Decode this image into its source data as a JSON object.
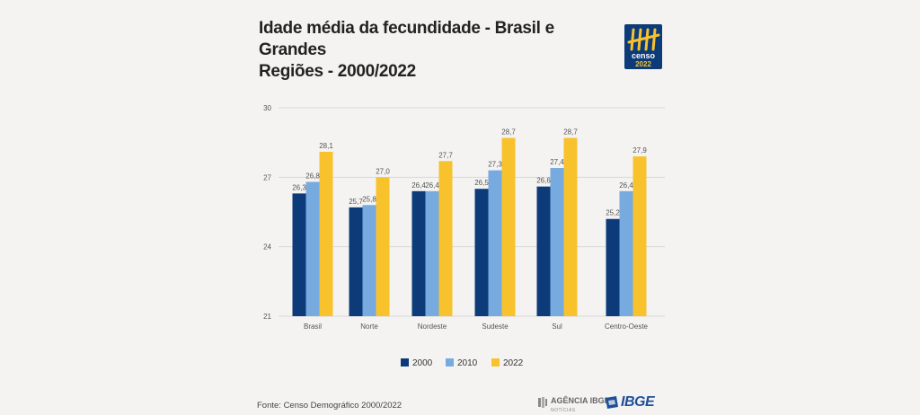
{
  "title_line1": "Idade média da fecundidade - Brasil e Grandes",
  "title_line2": "Regiões - 2000/2022",
  "logo_text": "censo",
  "logo_year": "2022",
  "source": "Fonte: Censo Demográfico 2000/2022",
  "agencia_label": "AGÊNCIA IBGE",
  "agencia_sub": "NOTÍCIAS",
  "ibge_label": "IBGE",
  "colors": {
    "s2000": "#0d3b7a",
    "s2010": "#77aadf",
    "s2022": "#f7c22b",
    "grid": "#d8d8d8",
    "text": "#555555"
  },
  "chart_data": {
    "type": "bar",
    "title": "Idade média da fecundidade - Brasil e Grandes Regiões - 2000/2022",
    "categories": [
      "Brasil",
      "Norte",
      "Nordeste",
      "Sudeste",
      "Sul",
      "Centro-Oeste"
    ],
    "series": [
      {
        "name": "2000",
        "values": [
          26.3,
          25.7,
          26.4,
          26.5,
          26.6,
          25.2
        ],
        "labels": [
          "26,3",
          "25,7",
          "26,4",
          "26,5",
          "26,6",
          "25,2"
        ]
      },
      {
        "name": "2010",
        "values": [
          26.8,
          25.8,
          26.4,
          27.3,
          27.4,
          26.4
        ],
        "labels": [
          "26,8",
          "25,8",
          "26,4",
          "27,3",
          "27,4",
          "26,4"
        ]
      },
      {
        "name": "2022",
        "values": [
          28.1,
          27.0,
          27.7,
          28.7,
          28.7,
          27.9
        ],
        "labels": [
          "28,1",
          "27,0",
          "27,7",
          "28,7",
          "28,7",
          "27,9"
        ]
      }
    ],
    "ylim": [
      21,
      30
    ],
    "yticks": [
      "21",
      "24",
      "27",
      "30"
    ],
    "ytick_values": [
      21,
      24,
      27,
      30
    ],
    "grid": true,
    "legend": "bottom-center"
  }
}
